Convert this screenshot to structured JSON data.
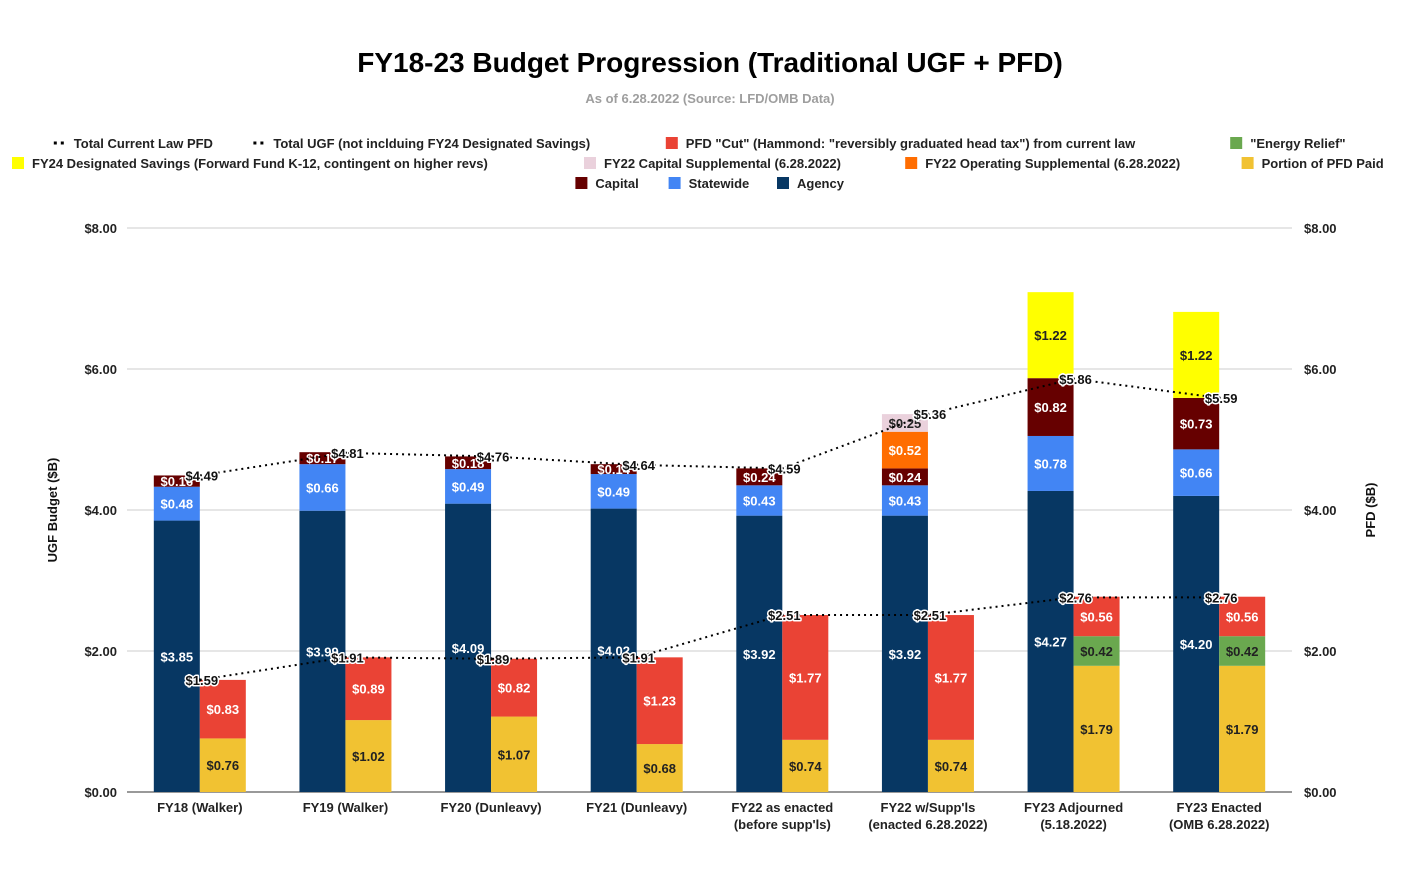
{
  "chart_data": {
    "type": "bar",
    "stacked": true,
    "title": "FY18-23 Budget Progression (Traditional UGF + PFD)",
    "subtitle": "As of 6.28.2022 (Source: LFD/OMB Data)",
    "ylabel_left": "UGF Budget ($B)",
    "ylabel_right": "PFD ($B)",
    "ylim": [
      0,
      8
    ],
    "yticks": [
      "$0.00",
      "$2.00",
      "$4.00",
      "$6.00",
      "$8.00"
    ],
    "grid": true,
    "legend_position": "top",
    "categories": [
      [
        "FY18 (Walker)"
      ],
      [
        "FY19 (Walker)"
      ],
      [
        "FY20 (Dunleavy)"
      ],
      [
        "FY21 (Dunleavy)"
      ],
      [
        "FY22 as enacted",
        "(before supp'ls)"
      ],
      [
        "FY22 w/Supp'ls",
        "(enacted 6.28.2022)"
      ],
      [
        "FY23 Adjourned",
        "(5.18.2022)"
      ],
      [
        "FY23 Enacted",
        "(OMB 6.28.2022)"
      ]
    ],
    "legend": [
      {
        "name": "Total Current Law PFD",
        "type": "line",
        "color": "#000000"
      },
      {
        "name": "Total UGF (not inclduing FY24 Designated Savings)",
        "type": "line",
        "color": "#000000"
      },
      {
        "name": "PFD \"Cut\" (Hammond: \"reversibly graduated head tax\") from current law",
        "type": "bar",
        "color": "#ea4335"
      },
      {
        "name": "\"Energy Relief\"",
        "type": "bar",
        "color": "#6aa84f"
      },
      {
        "name": "FY24 Designated Savings (Forward Fund K-12, contingent on higher revs)",
        "type": "bar",
        "color": "#ffff00"
      },
      {
        "name": "FY22 Capital Supplemental (6.28.2022)",
        "type": "bar",
        "color": "#ead1dc"
      },
      {
        "name": "FY22 Operating Supplemental (6.28.2022)",
        "type": "bar",
        "color": "#ff6d01"
      },
      {
        "name": "Portion of PFD Paid",
        "type": "bar",
        "color": "#f1c232"
      },
      {
        "name": "Capital",
        "type": "bar",
        "color": "#660000"
      },
      {
        "name": "Statewide",
        "type": "bar",
        "color": "#4285f4"
      },
      {
        "name": "Agency",
        "type": "bar",
        "color": "#073763"
      }
    ],
    "ugf_stack": {
      "series_order": [
        "Agency",
        "Statewide",
        "Capital",
        "FY22 Operating Supplemental (6.28.2022)",
        "FY22 Capital Supplemental (6.28.2022)",
        "FY24 Designated Savings (Forward Fund K-12, contingent on higher revs)"
      ],
      "colors": [
        "#073763",
        "#4285f4",
        "#660000",
        "#ff6d01",
        "#ead1dc",
        "#ffff00"
      ],
      "label_colors": [
        "#ffffff",
        "#ffffff",
        "#ffffff",
        "#ffffff",
        "#222222",
        "#222222"
      ],
      "values": [
        [
          3.85,
          0.48,
          0.16,
          0,
          0,
          0
        ],
        [
          3.99,
          0.66,
          0.17,
          0,
          0,
          0
        ],
        [
          4.09,
          0.49,
          0.18,
          0,
          0,
          0
        ],
        [
          4.02,
          0.49,
          0.14,
          0,
          0,
          0
        ],
        [
          3.92,
          0.43,
          0.24,
          0,
          0,
          0
        ],
        [
          3.92,
          0.43,
          0.24,
          0.52,
          0.25,
          0
        ],
        [
          4.27,
          0.78,
          0.82,
          0,
          0,
          1.22
        ],
        [
          4.2,
          0.66,
          0.73,
          0,
          0,
          1.22
        ]
      ],
      "labels": [
        [
          "$3.85",
          "$0.48",
          "$0.16",
          "",
          "",
          ""
        ],
        [
          "$3.99",
          "$0.66",
          "$0.17",
          "",
          "",
          ""
        ],
        [
          "$4.09",
          "$0.49",
          "$0.18",
          "",
          "",
          ""
        ],
        [
          "$4.02",
          "$0.49",
          "$0.14",
          "",
          "",
          ""
        ],
        [
          "$3.92",
          "$0.43",
          "$0.24",
          "",
          "",
          ""
        ],
        [
          "$3.92",
          "$0.43",
          "$0.24",
          "$0.52",
          "$0.25",
          ""
        ],
        [
          "$4.27",
          "$0.78",
          "$0.82",
          "",
          "",
          "$1.22"
        ],
        [
          "$4.20",
          "$0.66",
          "$0.73",
          "",
          "",
          "$1.22"
        ]
      ]
    },
    "pfd_stack": {
      "series_order": [
        "Portion of PFD Paid",
        "\"Energy Relief\"",
        "PFD \"Cut\" (Hammond: \"reversibly graduated head tax\") from current law"
      ],
      "colors": [
        "#f1c232",
        "#6aa84f",
        "#ea4335"
      ],
      "label_colors": [
        "#222222",
        "#222222",
        "#ffffff"
      ],
      "values": [
        [
          0.76,
          0,
          0.83
        ],
        [
          1.02,
          0,
          0.89
        ],
        [
          1.07,
          0,
          0.82
        ],
        [
          0.68,
          0,
          1.23
        ],
        [
          0.74,
          0,
          1.77
        ],
        [
          0.74,
          0,
          1.77
        ],
        [
          1.79,
          0.42,
          0.56
        ],
        [
          1.79,
          0.42,
          0.56
        ]
      ],
      "labels": [
        [
          "$0.76",
          "",
          "$0.83"
        ],
        [
          "$1.02",
          "",
          "$0.89"
        ],
        [
          "$1.07",
          "",
          "$0.82"
        ],
        [
          "$0.68",
          "",
          "$1.23"
        ],
        [
          "$0.74",
          "",
          "$1.77"
        ],
        [
          "$0.74",
          "",
          "$1.77"
        ],
        [
          "$1.79",
          "$0.42",
          "$0.56"
        ],
        [
          "$1.79",
          "$0.42",
          "$0.56"
        ]
      ]
    },
    "lines": [
      {
        "name": "Total UGF (not inclduing FY24 Designated Savings)",
        "values": [
          4.49,
          4.81,
          4.76,
          4.64,
          4.59,
          5.36,
          5.86,
          5.59
        ],
        "labels": [
          "$4.49",
          "$4.81",
          "$4.76",
          "$4.64",
          "$4.59",
          "$5.36",
          "$5.86",
          "$5.59"
        ]
      },
      {
        "name": "Total Current Law PFD",
        "values": [
          1.59,
          1.91,
          1.89,
          1.91,
          2.51,
          2.51,
          2.76,
          2.76
        ],
        "labels": [
          "$1.59",
          "$1.91",
          "$1.89",
          "$1.91",
          "$2.51",
          "$2.51",
          "$2.76",
          "$2.76"
        ]
      }
    ]
  }
}
